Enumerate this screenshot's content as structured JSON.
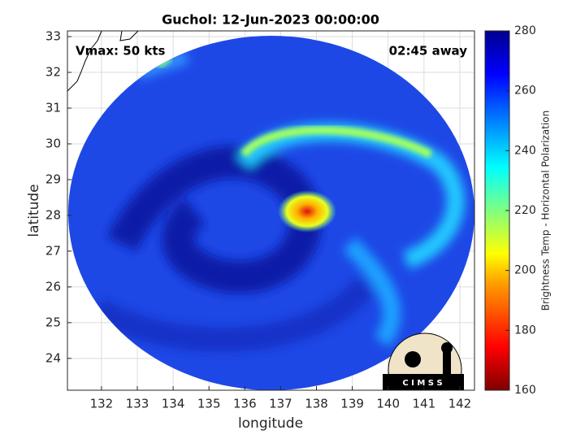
{
  "chart_data": {
    "type": "satellite-map",
    "title": "Guchol: 12-Jun-2023 00:00:00",
    "annotations": [
      "Vmax: 50 kts",
      "02:45 away"
    ],
    "xlabel": "longitude",
    "ylabel": "latitude",
    "xlim": [
      131.05,
      142.41
    ],
    "ylim": [
      23.11,
      33.16
    ],
    "xticks": [
      132,
      133,
      134,
      135,
      136,
      137,
      138,
      139,
      140,
      141,
      142
    ],
    "yticks": [
      24,
      25,
      26,
      27,
      28,
      29,
      30,
      31,
      32,
      33
    ],
    "grid": true,
    "colorbar": {
      "label": "Brightness Temp - Horizontal Polarization",
      "lim": [
        160,
        280
      ],
      "ticks": [
        160,
        180,
        200,
        220,
        240,
        260,
        280
      ]
    },
    "logo": "C I M S S"
  }
}
